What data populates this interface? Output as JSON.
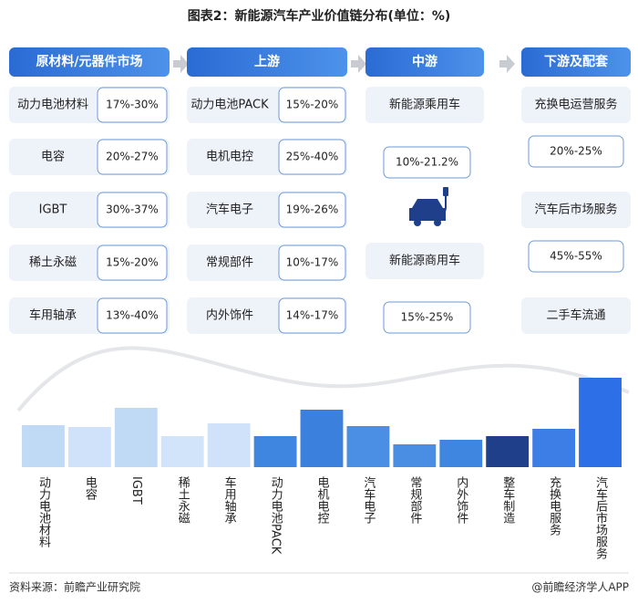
{
  "title": "图表2：新能源汽车产业价值链分布(单位：%)",
  "columns": [
    {
      "header": "原材料/元器件市场",
      "items": [
        {
          "label": "动力电池材料",
          "range": "17%-30%"
        },
        {
          "label": "电容",
          "range": "20%-27%"
        },
        {
          "label": "IGBT",
          "range": "30%-37%"
        },
        {
          "label": "稀土永磁",
          "range": "15%-20%"
        },
        {
          "label": "车用轴承",
          "range": "13%-40%"
        }
      ]
    },
    {
      "header": "上游",
      "items": [
        {
          "label": "动力电池PACK",
          "range": "15%-20%"
        },
        {
          "label": "电机电控",
          "range": "25%-40%"
        },
        {
          "label": "汽车电子",
          "range": "19%-26%"
        },
        {
          "label": "常规部件",
          "range": "10%-17%"
        },
        {
          "label": "内外饰件",
          "range": "14%-17%"
        }
      ]
    },
    {
      "header": "中游",
      "items": [
        {
          "label": "新能源乘用车"
        },
        {
          "range": "10%-21.2%"
        },
        {
          "label": "新能源商用车"
        },
        {
          "range": "15%-25%"
        }
      ]
    },
    {
      "header": "下游及配套",
      "items": [
        {
          "label": "充换电运营服务"
        },
        {
          "range": "20%-25%"
        },
        {
          "label": "汽车后市场服务"
        },
        {
          "range": "45%-55%"
        },
        {
          "label": "二手车流通"
        }
      ]
    }
  ],
  "chart_data": {
    "type": "bar",
    "categories": [
      "动力电池材料",
      "电容",
      "IGBT",
      "稀土永磁",
      "车用轴承",
      "动力电池PACK",
      "电机电控",
      "汽车电子",
      "常规部件",
      "内外饰件",
      "整车制造",
      "充换电服务",
      "汽车后市场服务"
    ],
    "values": [
      46,
      44,
      65,
      34,
      48,
      34,
      63,
      45,
      25,
      30,
      34,
      42,
      98
    ],
    "colors": [
      "#c0d9f5",
      "#cfe2f9",
      "#c0d9f5",
      "#d2e4f9",
      "#cfe2f9",
      "#3f86e0",
      "#3a80dc",
      "#4b8fe4",
      "#4a8ee4",
      "#3f86e0",
      "#1f3f8a",
      "#3c7de6",
      "#2c6fe6"
    ],
    "ylim": [
      0,
      100
    ]
  },
  "source": "资料来源：前瞻产业研究院",
  "brand": "@前瞻经济学人APP"
}
